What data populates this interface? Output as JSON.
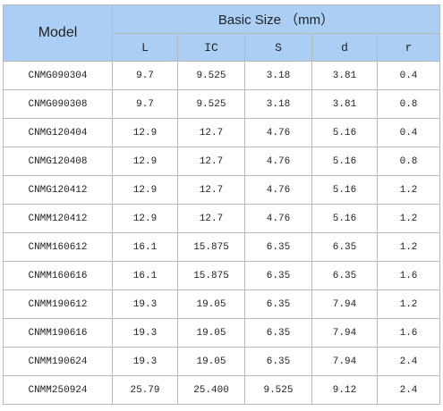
{
  "header": {
    "model": "Model",
    "basic_size": "Basic Size （mm）",
    "columns": [
      "L",
      "IC",
      "S",
      "d",
      "r"
    ]
  },
  "rows": [
    [
      "CNMG090304",
      "9.7",
      "9.525",
      "3.18",
      "3.81",
      "0.4"
    ],
    [
      "CNMG090308",
      "9.7",
      "9.525",
      "3.18",
      "3.81",
      "0.8"
    ],
    [
      "CNMG120404",
      "12.9",
      "12.7",
      "4.76",
      "5.16",
      "0.4"
    ],
    [
      "CNMG120408",
      "12.9",
      "12.7",
      "4.76",
      "5.16",
      "0.8"
    ],
    [
      "CNMG120412",
      "12.9",
      "12.7",
      "4.76",
      "5.16",
      "1.2"
    ],
    [
      "CNMM120412",
      "12.9",
      "12.7",
      "4.76",
      "5.16",
      "1.2"
    ],
    [
      "CNMM160612",
      "16.1",
      "15.875",
      "6.35",
      "6.35",
      "1.2"
    ],
    [
      "CNMM160616",
      "16.1",
      "15.875",
      "6.35",
      "6.35",
      "1.6"
    ],
    [
      "CNMM190612",
      "19.3",
      "19.05",
      "6.35",
      "7.94",
      "1.2"
    ],
    [
      "CNMM190616",
      "19.3",
      "19.05",
      "6.35",
      "7.94",
      "1.6"
    ],
    [
      "CNMM190624",
      "19.3",
      "19.05",
      "6.35",
      "7.94",
      "2.4"
    ],
    [
      "CNMM250924",
      "25.79",
      "25.400",
      "9.525",
      "9.12",
      "2.4"
    ]
  ]
}
